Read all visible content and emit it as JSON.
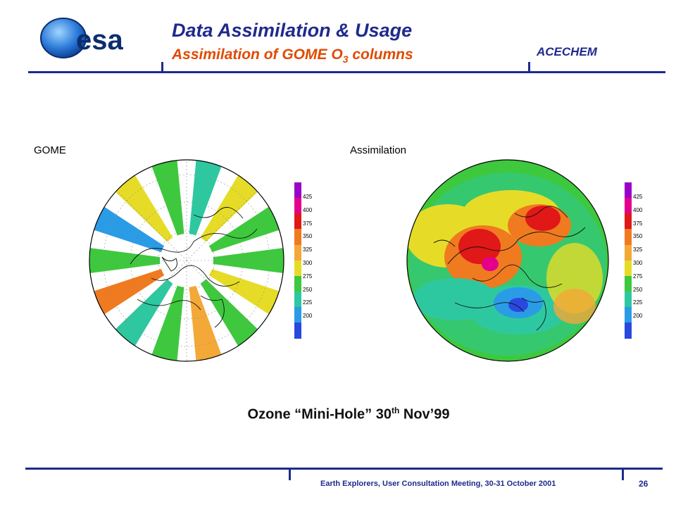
{
  "header": {
    "logo_text": "esa",
    "title": "Data Assimilation & Usage",
    "subtitle_prefix": "Assimilation of GOME O",
    "subtitle_sub": "3",
    "subtitle_suffix": " columns",
    "project": "ACECHEM"
  },
  "panels": {
    "left_label": "GOME",
    "right_label": "Assimilation"
  },
  "color_scale": {
    "ticks": [
      "425",
      "400",
      "375",
      "350",
      "325",
      "300",
      "275",
      "250",
      "225",
      "200"
    ],
    "colors": [
      "#9b00c8",
      "#e4008c",
      "#e01818",
      "#f07a20",
      "#f4a838",
      "#e6dc28",
      "#3ec83e",
      "#2ec8a0",
      "#2a9ce6",
      "#2848e0"
    ]
  },
  "caption": {
    "prefix": "Ozone “Mini-Hole” 30",
    "sup": "th",
    "suffix": " Nov’99"
  },
  "footer": {
    "text": "Earth Explorers, User Consultation Meeting, 30-31 October 2001",
    "page": "26"
  }
}
